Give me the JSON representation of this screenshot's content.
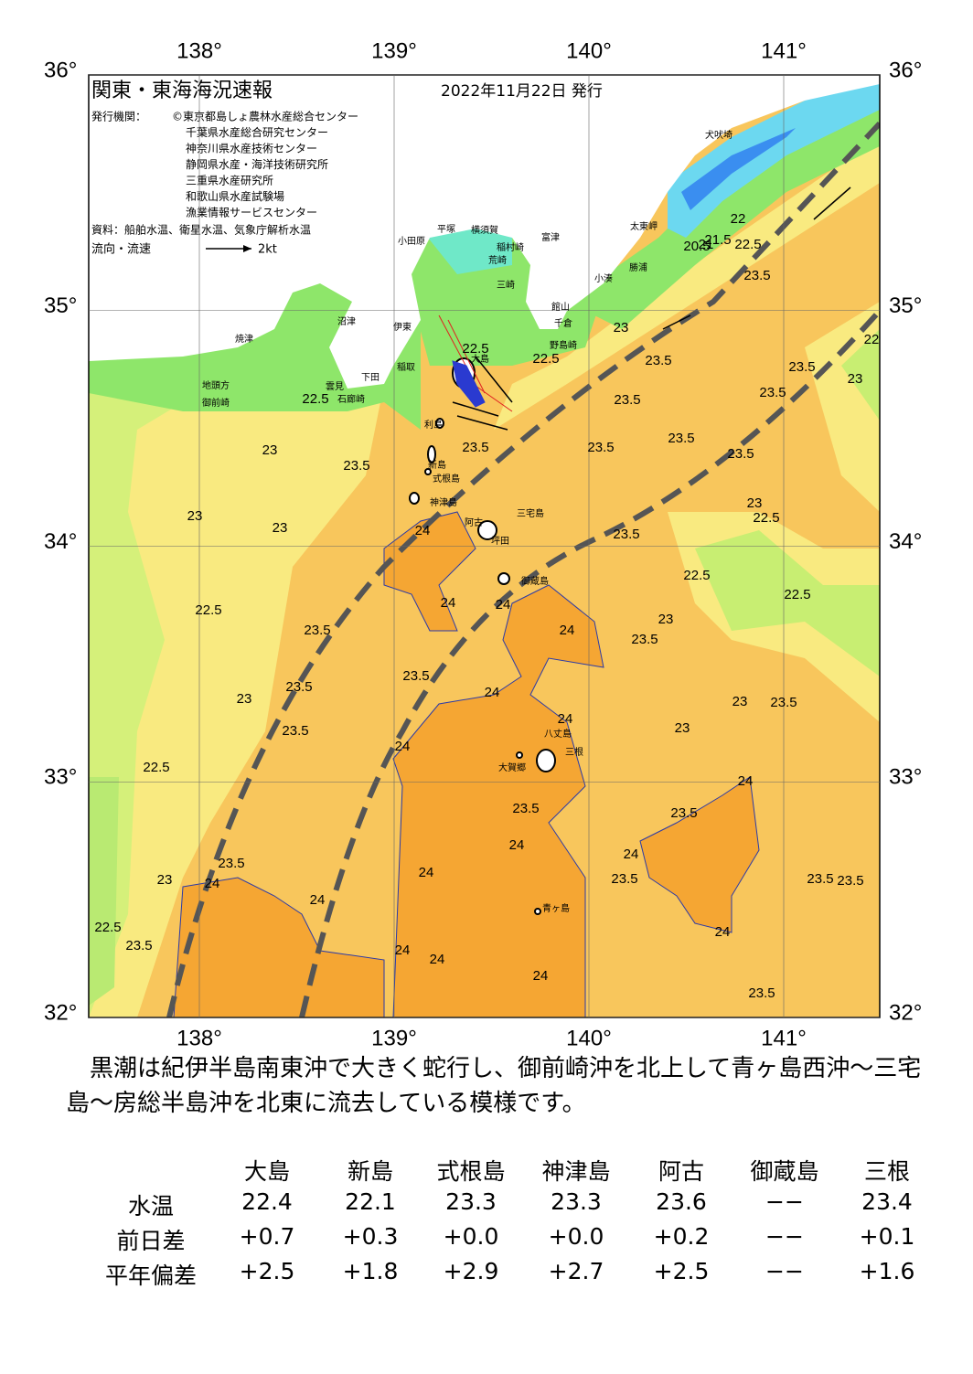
{
  "header": {
    "title": "関東・東海海況速報",
    "date": "2022年11月22日 発行"
  },
  "issuers": {
    "label": "発行機関：",
    "names": [
      "©東京都島しょ農林水産総合センター",
      "千葉県水産総合研究センター",
      "神奈川県水産技術センター",
      "静岡県水産・海洋技術研究所",
      "三重県水産研究所",
      "和歌山県水産試験場",
      "漁業情報サービスセンター"
    ]
  },
  "source": "資料：船舶水温、衛星水温、気象庁解析水温",
  "flow_legend": {
    "label": "流向・流速",
    "speed": "2kt"
  },
  "map": {
    "lon_ticks": [
      {
        "value": 138,
        "label": "138°"
      },
      {
        "value": 139,
        "label": "139°"
      },
      {
        "value": 140,
        "label": "140°"
      },
      {
        "value": 141,
        "label": "141°"
      }
    ],
    "lat_ticks": [
      {
        "value": 36,
        "label": "36°"
      },
      {
        "value": 35,
        "label": "35°"
      },
      {
        "value": 34,
        "label": "34°"
      },
      {
        "value": 33,
        "label": "33°"
      },
      {
        "value": 32,
        "label": "32°"
      }
    ],
    "places": [
      "犬吠埼",
      "太東岬",
      "勝浦",
      "小湊",
      "富津",
      "横須賀",
      "平塚",
      "小田原",
      "稲村崎",
      "荒崎",
      "三崎",
      "館山",
      "千倉",
      "野島崎",
      "沼津",
      "伊東",
      "焼津",
      "地頭方",
      "御前崎",
      "稲取",
      "下田",
      "雲見",
      "石廊崎",
      "大島",
      "利島",
      "新島",
      "式根島",
      "神津島",
      "三宅島",
      "阿古",
      "坪田",
      "御蔵島",
      "八丈島",
      "三根",
      "大賀郷",
      "青ヶ島"
    ],
    "contours": [
      22.5,
      22.5,
      22.5,
      23,
      23.5,
      23,
      23,
      24,
      22.5,
      23.5,
      24,
      24,
      24,
      23.5,
      23.5,
      23,
      24,
      23.5,
      24,
      24,
      22.5,
      23.5,
      24,
      24,
      23.5,
      24,
      23,
      24,
      22.5,
      23.5,
      24,
      24,
      24,
      23.5,
      23.5,
      24,
      23.5,
      24,
      24,
      23.5,
      23.5,
      23.5,
      23,
      23,
      22.5,
      22.5,
      23,
      23.5,
      23.5,
      23.5,
      23.5,
      22.5,
      23.5,
      23,
      23.5,
      23.5,
      22,
      23,
      23.5,
      23.5,
      23,
      23.5,
      22.5,
      22,
      21.5,
      21,
      20.5,
      23.5
    ]
  },
  "summary": "黒潮は紀伊半島南東沖で大きく蛇行し、御前崎沖を北上して青ヶ島西沖～三宅島～房総半島沖を北東に流去している模様です。",
  "table": {
    "columns": [
      "大島",
      "新島",
      "式根島",
      "神津島",
      "阿古",
      "御蔵島",
      "三根"
    ],
    "rows": [
      {
        "label": "水温",
        "cells": [
          "22.4",
          "22.1",
          "23.3",
          "23.3",
          "23.6",
          "−−",
          "23.4"
        ]
      },
      {
        "label": "前日差",
        "cells": [
          "+0.7",
          "+0.3",
          "+0.0",
          "+0.0",
          "+0.2",
          "−−",
          "+0.1"
        ]
      },
      {
        "label": "平年偏差",
        "cells": [
          "+2.5",
          "+1.8",
          "+2.9",
          "+2.7",
          "+2.5",
          "−−",
          "+1.6"
        ]
      }
    ]
  }
}
